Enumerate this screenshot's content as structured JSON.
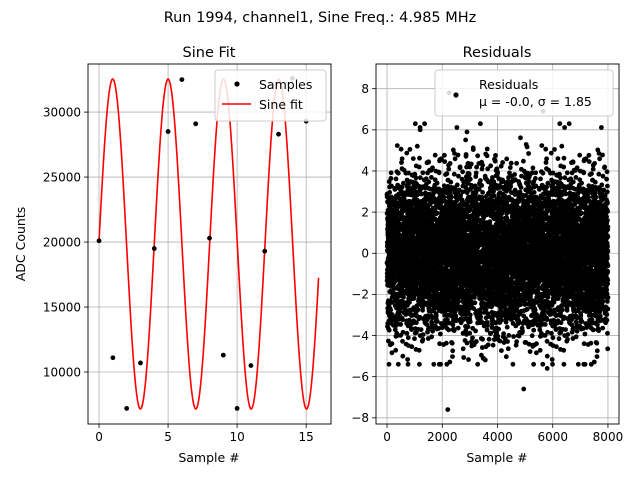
{
  "suptitle": "Run 1994, channel1, Sine Freq.: 4.985 MHz",
  "chart_data": [
    {
      "type": "line",
      "title": "Sine Fit",
      "xlabel": "Sample #",
      "ylabel": "ADC Counts",
      "xlim": [
        -0.8,
        16.8
      ],
      "ylim": [
        6000,
        33700
      ],
      "xticks": [
        0,
        5,
        10,
        15
      ],
      "yticks": [
        10000,
        15000,
        20000,
        25000,
        30000
      ],
      "grid": true,
      "legend": {
        "placement": "top-right",
        "entries": [
          "Samples",
          "Sine fit"
        ]
      },
      "series": [
        {
          "name": "Samples",
          "kind": "scatter",
          "color": "#000000",
          "x": [
            0,
            1,
            2,
            3,
            4,
            5,
            6,
            7,
            8,
            9,
            10,
            11,
            12,
            13,
            14,
            15
          ],
          "y": [
            20100,
            11100,
            7200,
            10700,
            19500,
            28500,
            32500,
            29100,
            20300,
            11300,
            7200,
            10500,
            19300,
            28300,
            32600,
            29300
          ]
        },
        {
          "name": "Sine fit",
          "kind": "line",
          "color": "#ff0000",
          "model": {
            "offset": 19850,
            "amplitude": 12700,
            "frequency_per_sample": 0.2493,
            "phase_rad": 0.0205,
            "x_start": 0,
            "x_end": 15.9
          }
        }
      ]
    },
    {
      "type": "scatter",
      "title": "Residuals",
      "xlabel": "Sample #",
      "ylabel": "",
      "xlim": [
        -400,
        8400
      ],
      "ylim": [
        -8.3,
        9.2
      ],
      "xticks": [
        0,
        2000,
        4000,
        6000,
        8000
      ],
      "yticks": [
        -8,
        -6,
        -4,
        -2,
        0,
        2,
        4,
        6,
        8
      ],
      "grid": true,
      "legend": {
        "placement": "top-right",
        "entries": [
          "Residuals",
          "μ = -0.0, σ = 1.85"
        ]
      },
      "series": [
        {
          "name": "Residuals",
          "color": "#000000",
          "summary": {
            "count": 8000,
            "x_range": [
              0,
              8000
            ],
            "mean": -0.0,
            "sigma": 1.85
          },
          "outliers": [
            [
              2250,
              7.8
            ],
            [
              5650,
              6.9
            ],
            [
              2200,
              -7.6
            ],
            [
              4950,
              -6.6
            ],
            [
              1200,
              6.0
            ],
            [
              5800,
              -5.6
            ]
          ]
        }
      ]
    }
  ]
}
